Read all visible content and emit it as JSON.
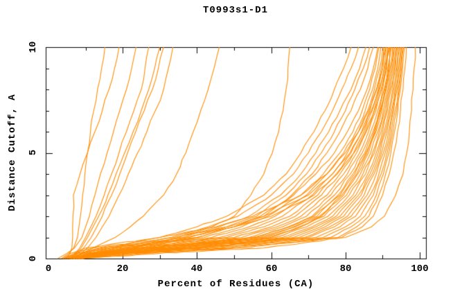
{
  "title": "T0993s1-D1",
  "chart_data": {
    "type": "line",
    "title": "T0993s1-D1",
    "xlabel": "Percent of Residues (CA)",
    "ylabel": "Distance Cutoff, A",
    "xlim": [
      0,
      100
    ],
    "ylim": [
      0,
      10
    ],
    "grid": false,
    "legend": "none",
    "x_ticks_major": [
      0,
      20,
      40,
      60,
      80,
      100
    ],
    "x_ticks_minor": [
      10,
      30,
      50,
      70,
      90
    ],
    "x_tick_labels": [
      "0",
      "20",
      "40",
      "60",
      "80",
      "100"
    ],
    "y_ticks_major": [
      0,
      5,
      10
    ],
    "y_ticks_minor": [
      1,
      2,
      3,
      4,
      6,
      7,
      8,
      9
    ],
    "y_tick_labels": [
      "0",
      "5",
      "10"
    ],
    "line_color": "#ff8c00",
    "axis_color": "#000000",
    "series_format": "percent_of_residues_at_each_distance_cutoff",
    "cutoffs": [
      0,
      0.25,
      0.5,
      1,
      1.5,
      2,
      3,
      4,
      5,
      6,
      7,
      8,
      9,
      10
    ],
    "series": [
      [
        3.5,
        5.5,
        6.8,
        7.8,
        8.2,
        8.6,
        9.2,
        9.8,
        10.5,
        11.3,
        12.2,
        13.2,
        14.3,
        15.2
      ],
      [
        4.8,
        5.8,
        6.3,
        6.5,
        6.5,
        6.6,
        6.7,
        8.5,
        10.5,
        12.5,
        14.5,
        16.3,
        17.8,
        19.0
      ],
      [
        2.5,
        5.0,
        7.0,
        9.0,
        10.0,
        11.0,
        12.5,
        14.0,
        15.8,
        17.5,
        19.2,
        21.0,
        22.4,
        23.6
      ],
      [
        5.8,
        7.2,
        8.4,
        10.0,
        11.4,
        12.8,
        15.0,
        17.0,
        19.0,
        21.0,
        23.0,
        25.0,
        26.0,
        27.0
      ],
      [
        6.0,
        7.5,
        8.8,
        10.5,
        12.0,
        13.5,
        16.0,
        18.2,
        20.5,
        22.8,
        25.0,
        27.0,
        28.6,
        30.0
      ],
      [
        6.3,
        8.0,
        9.5,
        11.5,
        13.0,
        14.5,
        17.0,
        19.2,
        21.3,
        23.5,
        25.8,
        28.0,
        29.6,
        31.0
      ],
      [
        7.0,
        8.8,
        10.5,
        12.8,
        14.5,
        16.3,
        19.0,
        21.5,
        24.0,
        26.5,
        28.8,
        31.0,
        32.3,
        33.5
      ],
      [
        7.0,
        9.0,
        12.0,
        18.0,
        22.0,
        25.5,
        31.0,
        34.5,
        37.0,
        39.0,
        41.0,
        43.0,
        44.6,
        46.0
      ],
      [
        8.0,
        14.0,
        22.0,
        35.0,
        44.0,
        50.0,
        54.5,
        58.0,
        60.3,
        62.0,
        63.2,
        64.0,
        64.5,
        65.0
      ],
      [
        6.0,
        10,
        16,
        30,
        40,
        48,
        58,
        64,
        68,
        71.5,
        74.5,
        77,
        79.5,
        81.5
      ],
      [
        6.5,
        11,
        18,
        33,
        43,
        51,
        60,
        66,
        70,
        73.5,
        76.5,
        79,
        81.5,
        83.5
      ],
      [
        7.0,
        12,
        20,
        36,
        46,
        54,
        62.5,
        68,
        72,
        75.5,
        78.5,
        81.5,
        83.8,
        85.5
      ],
      [
        7.5,
        13,
        22,
        38,
        48,
        56,
        64,
        69.5,
        73.5,
        77,
        80,
        82.5,
        84.8,
        86.5
      ],
      [
        8.0,
        14,
        24,
        40,
        50,
        58,
        65.5,
        71,
        75,
        78.5,
        81.5,
        84,
        86,
        87.5
      ],
      [
        4.0,
        6,
        10,
        30,
        45,
        55,
        68,
        75,
        80,
        83.5,
        86.3,
        88.4,
        90,
        91
      ],
      [
        4.2,
        7,
        12,
        34,
        48,
        58,
        70,
        76.5,
        81.2,
        84.5,
        87,
        89,
        90.5,
        91.5
      ],
      [
        4.5,
        8,
        14,
        37,
        50,
        60,
        71.5,
        77.8,
        82.3,
        85.4,
        87.8,
        89.6,
        91,
        92
      ],
      [
        4.0,
        8,
        15,
        40,
        50,
        57,
        66,
        72,
        77,
        80.5,
        83.5,
        85.8,
        87.5,
        88.7
      ],
      [
        4.5,
        9,
        17,
        42,
        52,
        59,
        68,
        74,
        78.5,
        82,
        84.5,
        86.5,
        88,
        89
      ],
      [
        5.0,
        10,
        19,
        44,
        54,
        61,
        69.5,
        75,
        79.5,
        82.8,
        85.3,
        87.3,
        88.7,
        89.5
      ],
      [
        5.5,
        11,
        21,
        46,
        56,
        63,
        71,
        76.5,
        80.5,
        83.5,
        86,
        87.8,
        89.2,
        90
      ],
      [
        6.0,
        12,
        23,
        48,
        58,
        65,
        72.5,
        77.5,
        81.5,
        84.3,
        86.6,
        88.3,
        89.6,
        90.3
      ],
      [
        6.5,
        13,
        25,
        50,
        60,
        66.5,
        73.5,
        78.5,
        82.2,
        85,
        87.2,
        88.8,
        90,
        90.7
      ],
      [
        7.0,
        14,
        27,
        52,
        61.5,
        68,
        75,
        79.5,
        83,
        85.6,
        87.7,
        89.2,
        90.4,
        91
      ],
      [
        7.5,
        15,
        29,
        54,
        63,
        69.5,
        76,
        80.5,
        83.8,
        86.2,
        88.2,
        89.7,
        90.8,
        91.4
      ],
      [
        8.0,
        16,
        31,
        56,
        64.5,
        71,
        77,
        81.3,
        84.5,
        86.8,
        88.7,
        90,
        91.1,
        91.7
      ],
      [
        8.5,
        17,
        33,
        58,
        66,
        72.3,
        78,
        82,
        85.2,
        87.4,
        89.1,
        90.4,
        91.4,
        92
      ],
      [
        9.0,
        18,
        35,
        60,
        67.5,
        73.5,
        79,
        83,
        85.8,
        88,
        89.5,
        90.8,
        91.8,
        92.3
      ],
      [
        5.0,
        12,
        26,
        55,
        65,
        71.5,
        78.5,
        82.5,
        85.5,
        87.7,
        89.3,
        90.6,
        91.6,
        92.2
      ],
      [
        5.5,
        13,
        28,
        57,
        66.5,
        73,
        79.5,
        83.3,
        86.2,
        88.2,
        89.8,
        91,
        92,
        92.6
      ],
      [
        6.0,
        14,
        30,
        59,
        68,
        74.2,
        80.3,
        84,
        86.8,
        88.7,
        90.2,
        91.4,
        92.3,
        92.9
      ],
      [
        6.5,
        15,
        32,
        61,
        69.5,
        75.3,
        81,
        84.7,
        87.3,
        89.1,
        90.6,
        91.7,
        92.6,
        93.2
      ],
      [
        7.0,
        16,
        34,
        63,
        71,
        76.5,
        82,
        85.4,
        87.8,
        89.6,
        91,
        92,
        92.9,
        93.5
      ],
      [
        7.5,
        17,
        36,
        64.5,
        72,
        77.5,
        82.8,
        86,
        88.3,
        90,
        91.3,
        92.3,
        93.2,
        93.8
      ],
      [
        8.0,
        18,
        38,
        66,
        73.3,
        78.5,
        83.5,
        86.6,
        88.8,
        90.4,
        91.7,
        92.7,
        93.5,
        94
      ],
      [
        8.5,
        19,
        40,
        67.5,
        74.5,
        79.5,
        84.2,
        87.2,
        89.3,
        90.8,
        92,
        93,
        93.8,
        94.3
      ],
      [
        9.0,
        20,
        42,
        69,
        75.7,
        80.5,
        85,
        87.7,
        89.7,
        91.2,
        92.4,
        93.3,
        94,
        94.6
      ],
      [
        6.0,
        16,
        38,
        70,
        77,
        81.5,
        85.8,
        88.3,
        90.2,
        91.6,
        92.7,
        93.6,
        94.3,
        94.9
      ],
      [
        6.5,
        18,
        41,
        72,
        78.5,
        82.7,
        86.6,
        89,
        90.7,
        92,
        93,
        93.9,
        94.6,
        95.1
      ],
      [
        7.0,
        20,
        44,
        74,
        80,
        84,
        87.5,
        89.6,
        91.2,
        92.4,
        93.4,
        94.2,
        94.9,
        95.4
      ],
      [
        7.5,
        22,
        47,
        76,
        81.5,
        85.2,
        88.3,
        90.2,
        91.7,
        92.8,
        93.8,
        94.5,
        95.1,
        95.6
      ],
      [
        8.0,
        24,
        50,
        78,
        83,
        86.3,
        89,
        90.8,
        92.2,
        93.2,
        94.1,
        94.8,
        95.4,
        95.9
      ],
      [
        8.5,
        26,
        52,
        79,
        84.5,
        87.5,
        90,
        91.8,
        93,
        94,
        94.8,
        95.5,
        96,
        96.4
      ],
      [
        9.0,
        30,
        58,
        80,
        87,
        90.5,
        93.5,
        95.5,
        96.5,
        97.2,
        97.8,
        98.2,
        98.5,
        98.8
      ]
    ]
  }
}
